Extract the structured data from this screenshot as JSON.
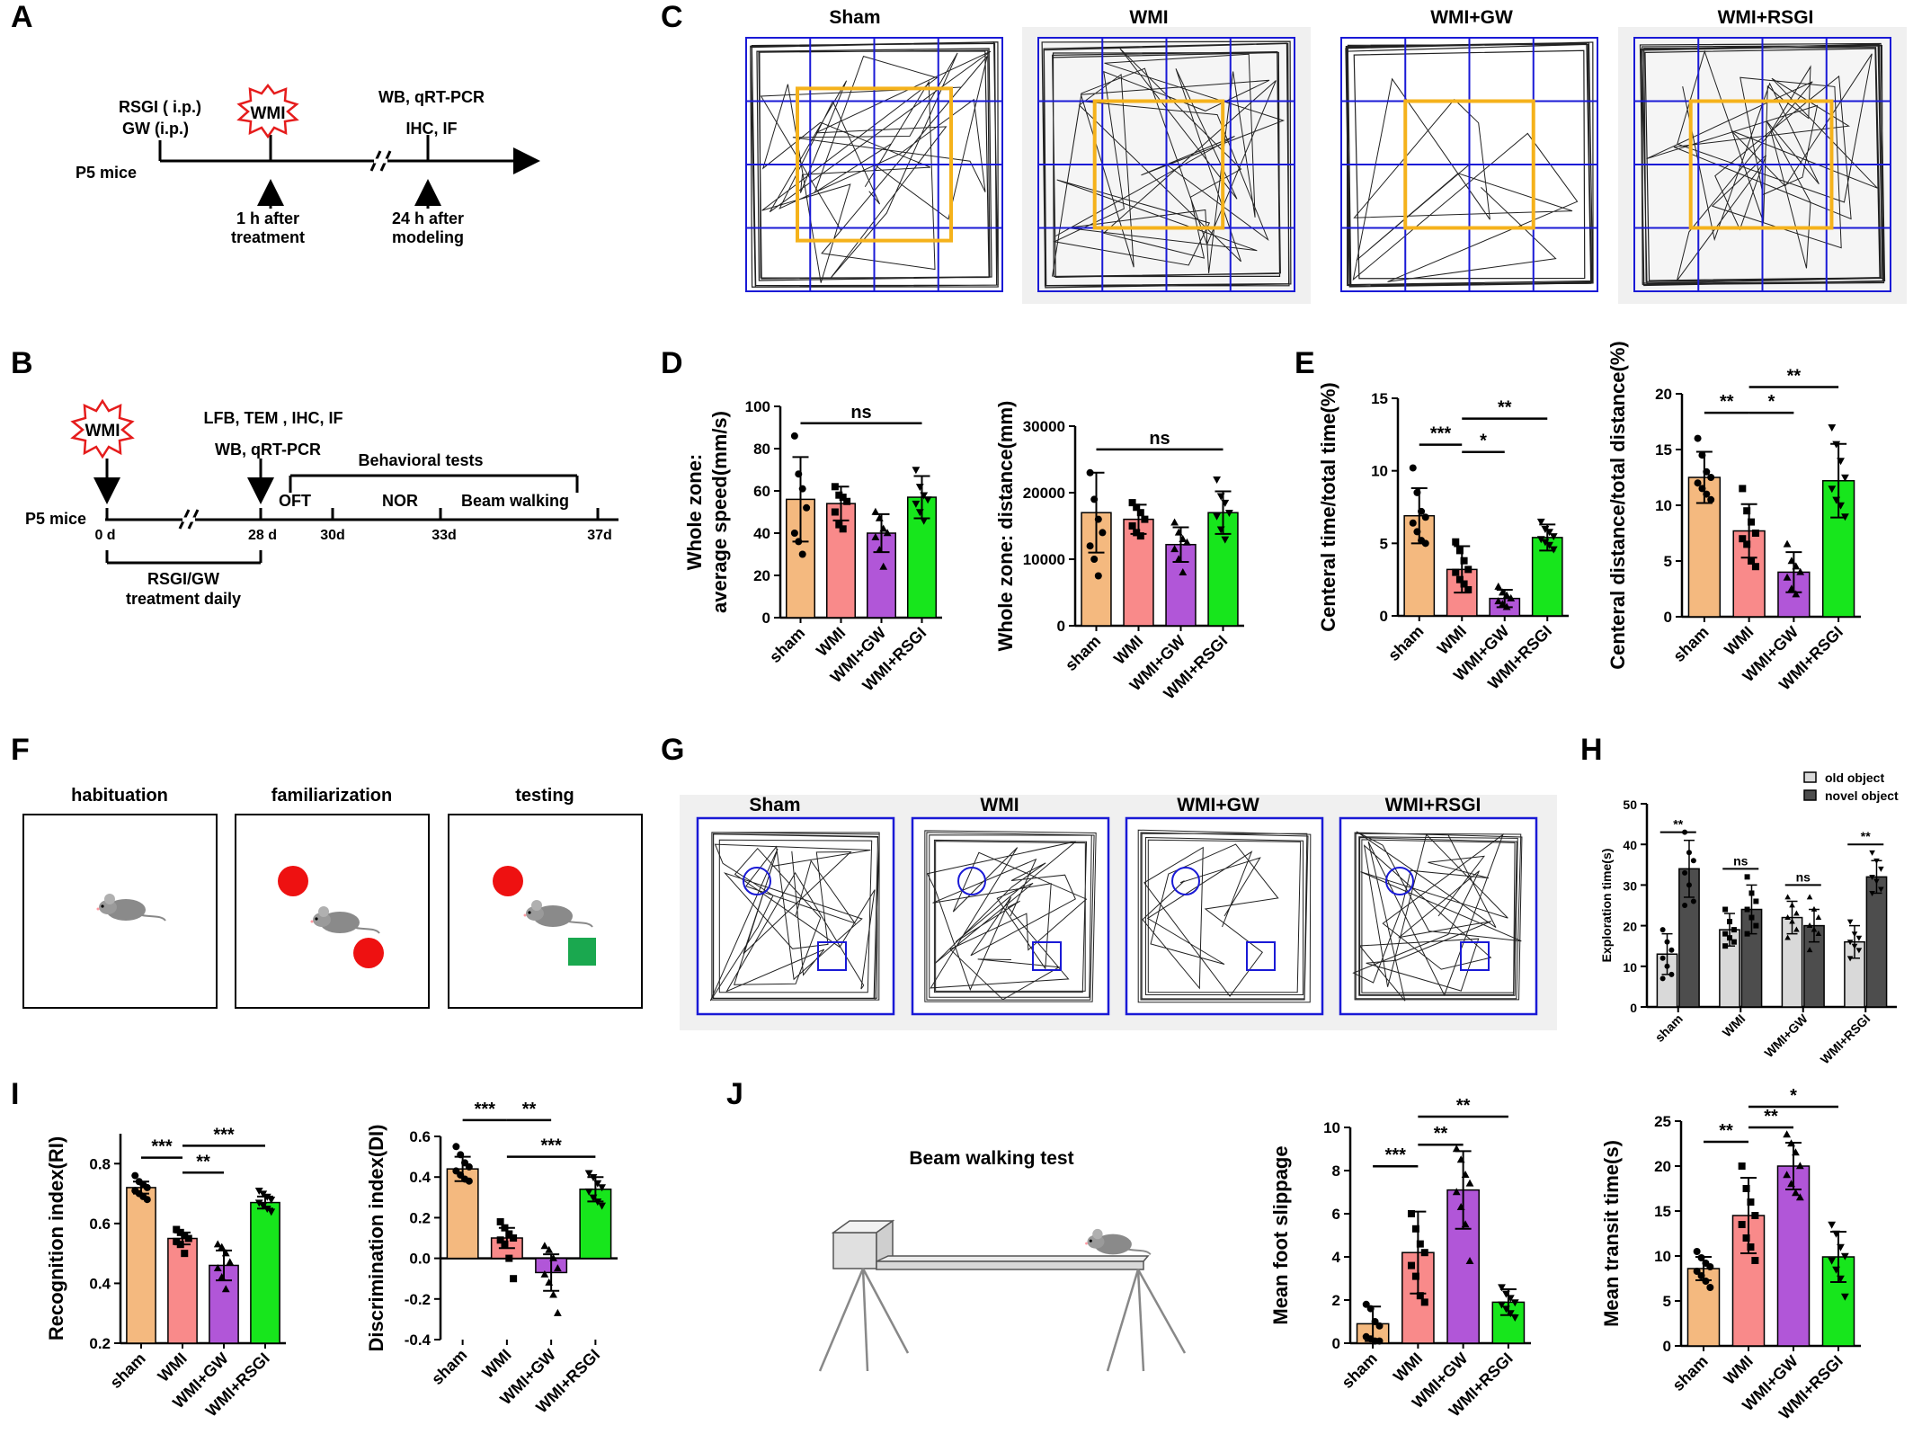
{
  "panels": {
    "A": "A",
    "B": "B",
    "C": "C",
    "D": "D",
    "E": "E",
    "F": "F",
    "G": "G",
    "H": "H",
    "I": "I",
    "J": "J"
  },
  "timelineA": {
    "treat1": "RSGI ( i.p.)",
    "treat2": "GW (i.p.)",
    "wmi": "WMI",
    "assay1": "WB,  qRT-PCR",
    "assay2": "IHC, IF",
    "start": "P5 mice",
    "arrow1a": "1 h after",
    "arrow1b": "treatment",
    "arrow2a": "24 h after",
    "arrow2b": "modeling"
  },
  "timelineB": {
    "wmi": "WMI",
    "assay1": "LFB, TEM ,  IHC, IF",
    "assay2": "WB, qRT-PCR",
    "behav": "Behavioral tests",
    "oft": "OFT",
    "nor": "NOR",
    "beam": "Beam walking",
    "start": "P5 mice",
    "d0": "0 d",
    "d28": "28 d",
    "d30": "30d",
    "d33": "33d",
    "d37": "37d",
    "treat1": "RSGI/GW",
    "treat2": "treatment daily"
  },
  "arenaTitlesC": [
    "Sham",
    "WMI",
    "WMI+GW",
    "WMI+RSGI"
  ],
  "arenaTitlesG": [
    "Sham",
    "WMI",
    "WMI+GW",
    "WMI+RSGI"
  ],
  "norStages": [
    "habituation",
    "familiarization",
    "testing"
  ],
  "beamTitle": "Beam walking test",
  "legendH": [
    "old object",
    "novel object"
  ],
  "colors": {
    "sham": "#f4b97f",
    "wmi": "#f98a8a",
    "gw": "#b156d8",
    "rsgi": "#17e61c",
    "old": "#d9d9d9",
    "novel": "#4d4d4d",
    "grid": "#1a1ad6",
    "center": "#f5b21b",
    "red": "#ee1111",
    "green": "#1aa84f",
    "wmiStar": "#e51c1c"
  },
  "chart_data": [
    {
      "id": "D1",
      "type": "bar",
      "categories": [
        "sham",
        "WMI",
        "WMI+GW",
        "WMI+RSGI"
      ],
      "values": [
        56,
        54,
        40,
        57
      ],
      "errors": [
        20,
        8,
        9,
        10
      ],
      "ylabel": "Whole zone:\naverage speed(mm/s)",
      "ylim": [
        0,
        100
      ],
      "yticks": [
        0,
        20,
        40,
        60,
        80,
        100
      ],
      "points": [
        [
          86,
          68,
          61,
          52,
          40,
          36,
          30
        ],
        [
          62,
          58,
          57,
          55,
          50,
          44,
          42
        ],
        [
          50,
          47,
          42,
          40,
          38,
          32,
          24
        ],
        [
          70,
          62,
          58,
          56,
          54,
          50,
          46
        ]
      ],
      "sig": [
        {
          "from": 0,
          "to": 3,
          "text": "ns",
          "y": 92
        }
      ]
    },
    {
      "id": "D2",
      "type": "bar",
      "categories": [
        "sham",
        "WMI",
        "WMI+GW",
        "WMI+RSGI"
      ],
      "values": [
        17000,
        16000,
        12200,
        17000
      ],
      "errors": [
        6000,
        2200,
        2600,
        3200
      ],
      "ylabel": "Whole zone: distance(mm)",
      "ylim": [
        0,
        30000
      ],
      "yticks": [
        0,
        10000,
        20000,
        30000
      ],
      "points": [
        [
          23000,
          19000,
          16000,
          14000,
          12000,
          10000,
          7500
        ],
        [
          18500,
          17800,
          17000,
          16000,
          15000,
          14000,
          13500
        ],
        [
          15500,
          14000,
          13000,
          12500,
          11500,
          10000,
          8000
        ],
        [
          22000,
          19500,
          18500,
          17000,
          16500,
          14500,
          13000
        ]
      ],
      "sig": [
        {
          "from": 0,
          "to": 3,
          "text": "ns",
          "y": 26500
        }
      ]
    },
    {
      "id": "E1",
      "type": "bar",
      "categories": [
        "sham",
        "WMI",
        "WMI+GW",
        "WMI+RSGI"
      ],
      "values": [
        6.9,
        3.2,
        1.2,
        5.4
      ],
      "errors": [
        1.9,
        1.6,
        0.6,
        0.9
      ],
      "ylabel": "Centeral time/total time(%)",
      "ylim": [
        0,
        15
      ],
      "yticks": [
        0,
        5,
        10,
        15
      ],
      "points": [
        [
          10.2,
          8.5,
          7.2,
          6.8,
          6.4,
          5.8,
          5.2,
          5.0
        ],
        [
          5.1,
          4.5,
          3.8,
          3.2,
          3.0,
          2.5,
          2.2,
          1.8
        ],
        [
          2.0,
          1.6,
          1.4,
          1.2,
          1.0,
          0.8,
          0.6
        ],
        [
          6.5,
          6.0,
          5.8,
          5.5,
          5.3,
          5.1,
          4.9,
          4.6
        ]
      ],
      "sig": [
        {
          "from": 0,
          "to": 1,
          "text": "***",
          "y": 11.8
        },
        {
          "from": 1,
          "to": 2,
          "text": "*",
          "y": 11.3
        },
        {
          "from": 1,
          "to": 3,
          "text": "**",
          "y": 13.6
        }
      ]
    },
    {
      "id": "E2",
      "type": "bar",
      "categories": [
        "sham",
        "WMI",
        "WMI+GW",
        "WMI+RSGI"
      ],
      "values": [
        12.5,
        7.7,
        4.0,
        12.2
      ],
      "errors": [
        2.3,
        2.4,
        1.8,
        3.3
      ],
      "ylabel": "Centeral distance/total distance(%)",
      "ylim": [
        0,
        20
      ],
      "yticks": [
        0,
        5,
        10,
        15,
        20
      ],
      "points": [
        [
          16.0,
          14.5,
          13.0,
          12.5,
          12.0,
          11.5,
          11.0,
          10.5
        ],
        [
          11.5,
          9.5,
          8.5,
          7.5,
          7.0,
          6.5,
          5.0,
          4.5
        ],
        [
          6.5,
          5.0,
          4.5,
          4.0,
          3.5,
          2.5,
          2.0
        ],
        [
          17.0,
          15.5,
          14.0,
          12.5,
          11.5,
          10.5,
          10.0,
          9.0
        ]
      ],
      "sig": [
        {
          "from": 0,
          "to": 1,
          "text": "**",
          "y": 18.3
        },
        {
          "from": 1,
          "to": 2,
          "text": "*",
          "y": 18.3
        },
        {
          "from": 1,
          "to": 3,
          "text": "**",
          "y": 20.6
        }
      ]
    },
    {
      "id": "H",
      "type": "bar",
      "categories": [
        "sham",
        "WMI",
        "WMI+GW",
        "WMI+RSGI"
      ],
      "series": [
        {
          "name": "old object",
          "values": [
            13,
            19,
            22,
            16
          ],
          "errors": [
            5,
            4,
            4,
            4
          ]
        },
        {
          "name": "novel object",
          "values": [
            34,
            24,
            20,
            32
          ],
          "errors": [
            7,
            6,
            4,
            4
          ]
        }
      ],
      "ylabel": "Exploration time(s)",
      "ylim": [
        0,
        50
      ],
      "yticks": [
        0,
        10,
        20,
        30,
        40,
        50
      ],
      "points_old": [
        [
          19,
          16,
          14,
          12,
          10,
          8,
          7
        ],
        [
          24,
          21,
          19,
          18,
          17,
          16,
          15
        ],
        [
          27,
          25,
          23,
          22,
          21,
          19,
          17
        ],
        [
          21,
          18,
          17,
          16,
          15,
          14,
          12
        ]
      ],
      "points_novel": [
        [
          43,
          38,
          36,
          33,
          30,
          26,
          25
        ],
        [
          32,
          28,
          26,
          24,
          22,
          20,
          18
        ],
        [
          27,
          24,
          22,
          20,
          19,
          18,
          14
        ],
        [
          38,
          36,
          34,
          32,
          31,
          29,
          28
        ]
      ],
      "sig": [
        {
          "group": 0,
          "text": "**",
          "y": 43
        },
        {
          "group": 1,
          "text": "ns",
          "y": 34
        },
        {
          "group": 2,
          "text": "ns",
          "y": 30
        },
        {
          "group": 3,
          "text": "**",
          "y": 40
        }
      ]
    },
    {
      "id": "I1",
      "type": "bar",
      "categories": [
        "sham",
        "WMI",
        "WMI+GW",
        "WMI+RSGI"
      ],
      "values": [
        0.72,
        0.55,
        0.46,
        0.67
      ],
      "errors": [
        0.02,
        0.02,
        0.05,
        0.02
      ],
      "ylabel": "Recognition index(RI)",
      "ylim": [
        0.2,
        0.9
      ],
      "yticks": [
        0.2,
        0.4,
        0.6,
        0.8
      ],
      "points": [
        [
          0.76,
          0.74,
          0.73,
          0.72,
          0.71,
          0.7,
          0.69,
          0.68
        ],
        [
          0.58,
          0.57,
          0.56,
          0.55,
          0.54,
          0.53,
          0.5
        ],
        [
          0.53,
          0.52,
          0.5,
          0.47,
          0.45,
          0.42,
          0.38
        ],
        [
          0.71,
          0.7,
          0.69,
          0.68,
          0.67,
          0.66,
          0.65,
          0.64
        ]
      ],
      "sig": [
        {
          "from": 0,
          "to": 1,
          "text": "***",
          "y": 0.82
        },
        {
          "from": 1,
          "to": 2,
          "text": "**",
          "y": 0.77
        },
        {
          "from": 1,
          "to": 3,
          "text": "***",
          "y": 0.86
        }
      ]
    },
    {
      "id": "I2",
      "type": "bar",
      "categories": [
        "sham",
        "WMI",
        "WMI+GW",
        "WMI+RSGI"
      ],
      "values": [
        0.44,
        0.1,
        -0.07,
        0.34
      ],
      "errors": [
        0.06,
        0.05,
        0.09,
        0.06
      ],
      "ylabel": "Discrimination index(DI)",
      "ylim": [
        -0.4,
        0.6
      ],
      "yticks": [
        -0.4,
        -0.2,
        0.0,
        0.2,
        0.4,
        0.6
      ],
      "points": [
        [
          0.55,
          0.51,
          0.47,
          0.45,
          0.43,
          0.41,
          0.39,
          0.38
        ],
        [
          0.18,
          0.15,
          0.12,
          0.1,
          0.09,
          0.07,
          0.0,
          -0.1
        ],
        [
          0.06,
          0.04,
          0.0,
          -0.05,
          -0.08,
          -0.12,
          -0.18,
          -0.27
        ],
        [
          0.42,
          0.4,
          0.37,
          0.35,
          0.33,
          0.3,
          0.28,
          0.26
        ]
      ],
      "sig": [
        {
          "from": 0,
          "to": 1,
          "text": "***",
          "y": 0.68
        },
        {
          "from": 1,
          "to": 2,
          "text": "**",
          "y": 0.68
        },
        {
          "from": 1,
          "to": 3,
          "text": "***",
          "y": 0.5
        }
      ]
    },
    {
      "id": "J1",
      "type": "bar",
      "categories": [
        "sham",
        "WMI",
        "WMI+GW",
        "WMI+RSGI"
      ],
      "values": [
        0.9,
        4.2,
        7.1,
        1.9
      ],
      "errors": [
        0.8,
        1.9,
        1.8,
        0.6
      ],
      "ylabel": "Mean foot slippage",
      "ylim": [
        0,
        10
      ],
      "yticks": [
        0,
        2,
        4,
        6,
        8,
        10
      ],
      "points": [
        [
          1.8,
          1.6,
          1.0,
          0.8,
          0.3,
          0.2,
          0.1,
          0.1
        ],
        [
          6.0,
          5.3,
          4.6,
          4.2,
          3.6,
          3.1,
          2.2,
          1.9
        ],
        [
          9.0,
          8.5,
          7.8,
          7.4,
          7.0,
          6.3,
          5.5,
          3.8
        ],
        [
          2.6,
          2.3,
          2.1,
          1.9,
          1.8,
          1.6,
          1.4,
          1.2
        ]
      ],
      "sig": [
        {
          "from": 0,
          "to": 1,
          "text": "***",
          "y": 8.2
        },
        {
          "from": 1,
          "to": 2,
          "text": "**",
          "y": 9.2
        },
        {
          "from": 1,
          "to": 3,
          "text": "**",
          "y": 10.5
        }
      ]
    },
    {
      "id": "J2",
      "type": "bar",
      "categories": [
        "sham",
        "WMI",
        "WMI+GW",
        "WMI+RSGI"
      ],
      "values": [
        8.6,
        14.5,
        20.0,
        9.9
      ],
      "errors": [
        1.3,
        4.2,
        2.6,
        2.8
      ],
      "ylabel": "Mean transit time(s)",
      "ylim": [
        0,
        25
      ],
      "yticks": [
        0,
        5,
        10,
        15,
        20,
        25
      ],
      "points": [
        [
          10.5,
          9.8,
          9.2,
          8.8,
          8.3,
          7.8,
          7.2,
          6.5
        ],
        [
          20.0,
          17.5,
          16.0,
          14.5,
          13.5,
          12.0,
          11.0,
          9.5
        ],
        [
          23.5,
          22.5,
          21.5,
          20.0,
          19.0,
          18.0,
          17.0,
          16.5
        ],
        [
          13.5,
          12.5,
          11.0,
          10.0,
          9.5,
          8.5,
          7.5,
          5.5
        ]
      ],
      "sig": [
        {
          "from": 0,
          "to": 1,
          "text": "**",
          "y": 22.7
        },
        {
          "from": 1,
          "to": 2,
          "text": "**",
          "y": 24.3
        },
        {
          "from": 1,
          "to": 3,
          "text": "*",
          "y": 26.6
        }
      ]
    }
  ]
}
